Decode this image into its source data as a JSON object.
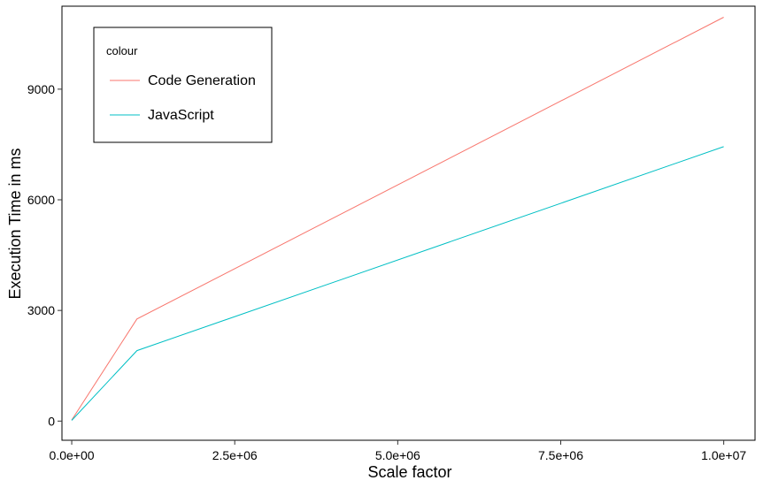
{
  "chart_data": {
    "type": "line",
    "xlabel": "Scale factor",
    "ylabel": "Execution Time in ms",
    "xlim": [
      -150000,
      10480000
    ],
    "ylim": [
      -520,
      11250
    ],
    "x_ticks": [
      0,
      2500000,
      5000000,
      7500000,
      10000000
    ],
    "x_tick_labels": [
      "0.0e+00",
      "2.5e+06",
      "5.0e+06",
      "7.5e+06",
      "1.0e+07"
    ],
    "y_ticks": [
      0,
      3000,
      6000,
      9000
    ],
    "y_tick_labels": [
      "0",
      "3000",
      "6000",
      "9000"
    ],
    "grid": false,
    "legend": {
      "title": "colour",
      "placement": "top-left"
    },
    "series": [
      {
        "name": "Code Generation",
        "color": "#F8766D",
        "x": [
          1,
          1000000,
          10000000
        ],
        "y": [
          30,
          2770,
          10950
        ]
      },
      {
        "name": "JavaScript",
        "color": "#00BFC4",
        "x": [
          1,
          1000000,
          10000000
        ],
        "y": [
          20,
          1910,
          7440
        ]
      }
    ]
  }
}
